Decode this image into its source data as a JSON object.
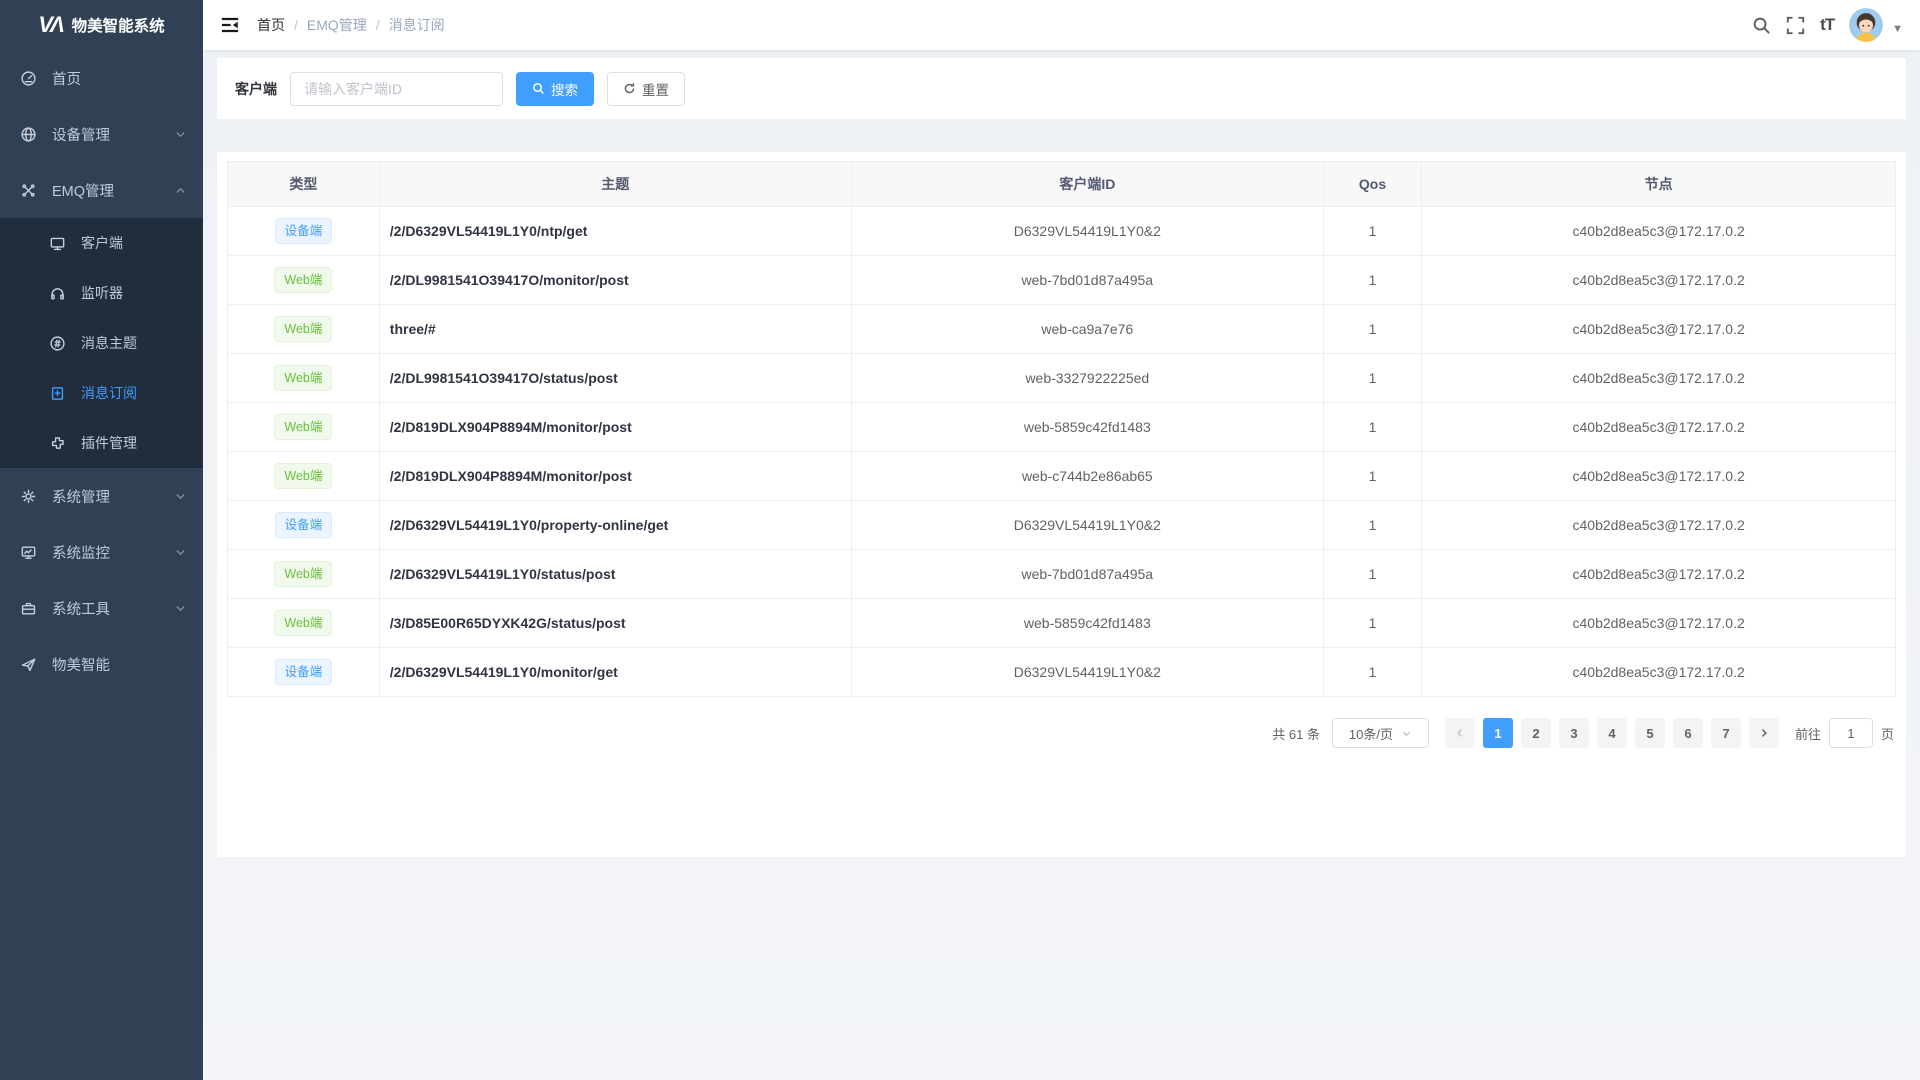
{
  "app_title": "物美智能系统",
  "sidebar": {
    "logo_text": "物美智能系统",
    "menu": [
      {
        "label": "首页",
        "icon": "dashboard-icon"
      },
      {
        "label": "设备管理",
        "icon": "device-icon",
        "chevron": "down"
      },
      {
        "label": "EMQ管理",
        "icon": "emq-icon",
        "chevron": "up",
        "children": [
          {
            "label": "客户端",
            "icon": "client-icon"
          },
          {
            "label": "监听器",
            "icon": "listener-icon"
          },
          {
            "label": "消息主题",
            "icon": "topic-icon"
          },
          {
            "label": "消息订阅",
            "icon": "subscription-icon",
            "active": true
          },
          {
            "label": "插件管理",
            "icon": "plugin-icon"
          }
        ]
      },
      {
        "label": "系统管理",
        "icon": "gear-icon",
        "chevron": "down"
      },
      {
        "label": "系统监控",
        "icon": "monitor-chart-icon",
        "chevron": "down"
      },
      {
        "label": "系统工具",
        "icon": "toolbox-icon",
        "chevron": "down"
      },
      {
        "label": "物美智能",
        "icon": "send-icon"
      }
    ]
  },
  "breadcrumb": {
    "items": [
      "首页",
      "EMQ管理",
      "消息订阅"
    ]
  },
  "header_icons": {
    "font_size_icon_text": "tT"
  },
  "search": {
    "label": "客户端",
    "placeholder": "请输入客户端ID",
    "search_label": "搜索",
    "reset_label": "重置"
  },
  "table": {
    "headers": [
      "类型",
      "主题",
      "客户端ID",
      "Qos",
      "节点"
    ],
    "rows": [
      {
        "type": "设备端",
        "tag": "blue",
        "topic": "/2/D6329VL54419L1Y0/ntp/get",
        "client_id": "D6329VL54419L1Y0&2",
        "qos": "1",
        "node": "c40b2d8ea5c3@172.17.0.2"
      },
      {
        "type": "Web端",
        "tag": "green",
        "topic": "/2/DL9981541O39417O/monitor/post",
        "client_id": "web-7bd01d87a495a",
        "qos": "1",
        "node": "c40b2d8ea5c3@172.17.0.2"
      },
      {
        "type": "Web端",
        "tag": "green",
        "topic": "three/#",
        "client_id": "web-ca9a7e76",
        "qos": "1",
        "node": "c40b2d8ea5c3@172.17.0.2"
      },
      {
        "type": "Web端",
        "tag": "green",
        "topic": "/2/DL9981541O39417O/status/post",
        "client_id": "web-3327922225ed",
        "qos": "1",
        "node": "c40b2d8ea5c3@172.17.0.2"
      },
      {
        "type": "Web端",
        "tag": "green",
        "topic": "/2/D819DLX904P8894M/monitor/post",
        "client_id": "web-5859c42fd1483",
        "qos": "1",
        "node": "c40b2d8ea5c3@172.17.0.2"
      },
      {
        "type": "Web端",
        "tag": "green",
        "topic": "/2/D819DLX904P8894M/monitor/post",
        "client_id": "web-c744b2e86ab65",
        "qos": "1",
        "node": "c40b2d8ea5c3@172.17.0.2"
      },
      {
        "type": "设备端",
        "tag": "blue",
        "topic": "/2/D6329VL54419L1Y0/property-online/get",
        "client_id": "D6329VL54419L1Y0&2",
        "qos": "1",
        "node": "c40b2d8ea5c3@172.17.0.2"
      },
      {
        "type": "Web端",
        "tag": "green",
        "topic": "/2/D6329VL54419L1Y0/status/post",
        "client_id": "web-7bd01d87a495a",
        "qos": "1",
        "node": "c40b2d8ea5c3@172.17.0.2"
      },
      {
        "type": "Web端",
        "tag": "green",
        "topic": "/3/D85E00R65DYXK42G/status/post",
        "client_id": "web-5859c42fd1483",
        "qos": "1",
        "node": "c40b2d8ea5c3@172.17.0.2"
      },
      {
        "type": "设备端",
        "tag": "blue",
        "topic": "/2/D6329VL54419L1Y0/monitor/get",
        "client_id": "D6329VL54419L1Y0&2",
        "qos": "1",
        "node": "c40b2d8ea5c3@172.17.0.2"
      }
    ]
  },
  "pagination": {
    "total_text": "共 61 条",
    "page_size": "10条/页",
    "pages": [
      "1",
      "2",
      "3",
      "4",
      "5",
      "6",
      "7"
    ],
    "active_page": "1",
    "goto_label": "前往",
    "goto_value": "1",
    "page_unit": "页"
  },
  "colors": {
    "accent": "#409eff",
    "success": "#67c23a",
    "sidebar_bg": "#304156",
    "submenu_bg": "#1f2d3d"
  }
}
